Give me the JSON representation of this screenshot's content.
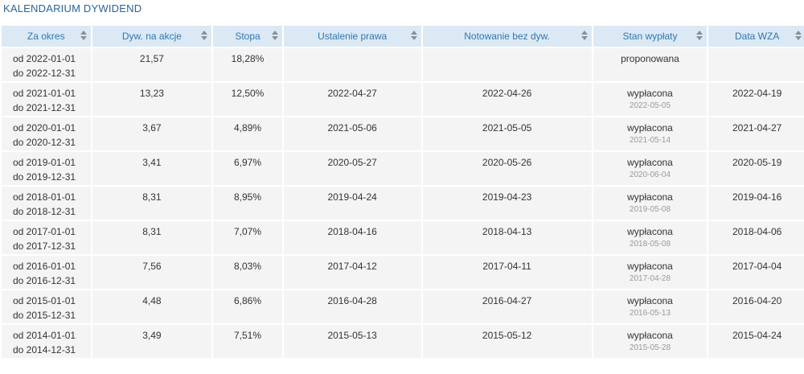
{
  "title": "KALENDARIUM DYWIDEND",
  "columns": [
    "Za okres",
    "Dyw. na akcje",
    "Stopa",
    "Ustalenie prawa",
    "Notowanie bez dyw.",
    "Stan wypłaty",
    "Data WZA"
  ],
  "rows": [
    {
      "from": "od 2022-01-01",
      "to": "do 2022-12-31",
      "dividend": "21,57",
      "rate": "18,28%",
      "record_date": "",
      "ex_date": "",
      "status": "proponowana",
      "paid_date": "",
      "agm_date": ""
    },
    {
      "from": "od 2021-01-01",
      "to": "do 2021-12-31",
      "dividend": "13,23",
      "rate": "12,50%",
      "record_date": "2022-04-27",
      "ex_date": "2022-04-26",
      "status": "wypłacona",
      "paid_date": "2022-05-05",
      "agm_date": "2022-04-19"
    },
    {
      "from": "od 2020-01-01",
      "to": "do 2020-12-31",
      "dividend": "3,67",
      "rate": "4,89%",
      "record_date": "2021-05-06",
      "ex_date": "2021-05-05",
      "status": "wypłacona",
      "paid_date": "2021-05-14",
      "agm_date": "2021-04-27"
    },
    {
      "from": "od 2019-01-01",
      "to": "do 2019-12-31",
      "dividend": "3,41",
      "rate": "6,97%",
      "record_date": "2020-05-27",
      "ex_date": "2020-05-26",
      "status": "wypłacona",
      "paid_date": "2020-06-04",
      "agm_date": "2020-05-19"
    },
    {
      "from": "od 2018-01-01",
      "to": "do 2018-12-31",
      "dividend": "8,31",
      "rate": "8,95%",
      "record_date": "2019-04-24",
      "ex_date": "2019-04-23",
      "status": "wypłacona",
      "paid_date": "2019-05-08",
      "agm_date": "2019-04-16"
    },
    {
      "from": "od 2017-01-01",
      "to": "do 2017-12-31",
      "dividend": "8,31",
      "rate": "7,07%",
      "record_date": "2018-04-16",
      "ex_date": "2018-04-13",
      "status": "wypłacona",
      "paid_date": "2018-05-08",
      "agm_date": "2018-04-06"
    },
    {
      "from": "od 2016-01-01",
      "to": "do 2016-12-31",
      "dividend": "7,56",
      "rate": "8,03%",
      "record_date": "2017-04-12",
      "ex_date": "2017-04-11",
      "status": "wypłacona",
      "paid_date": "2017-04-28",
      "agm_date": "2017-04-04"
    },
    {
      "from": "od 2015-01-01",
      "to": "do 2015-12-31",
      "dividend": "4,48",
      "rate": "6,86%",
      "record_date": "2016-04-28",
      "ex_date": "2016-04-27",
      "status": "wypłacona",
      "paid_date": "2016-05-13",
      "agm_date": "2016-04-20"
    },
    {
      "from": "od 2014-01-01",
      "to": "do 2014-12-31",
      "dividend": "3,49",
      "rate": "7,51%",
      "record_date": "2015-05-13",
      "ex_date": "2015-05-12",
      "status": "wypłacona",
      "paid_date": "2015-05-28",
      "agm_date": "2015-04-24"
    }
  ]
}
